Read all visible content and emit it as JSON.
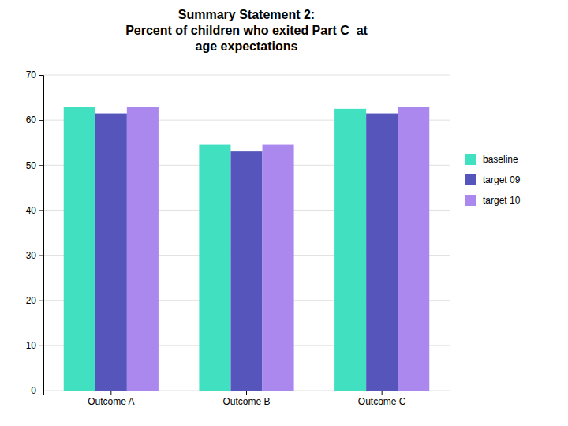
{
  "chart_data": {
    "type": "bar",
    "title": "Summary Statement 2:\nPercent of children who exited Part C  at\nage expectations",
    "categories": [
      "Outcome A",
      "Outcome B",
      "Outcome C"
    ],
    "series": [
      {
        "name": "baseline",
        "color": "#40E0C0",
        "values": [
          63,
          54.5,
          62.5
        ]
      },
      {
        "name": "target 09",
        "color": "#5555BB",
        "values": [
          61.5,
          53,
          61.5
        ]
      },
      {
        "name": "target 10",
        "color": "#AA88EE",
        "values": [
          63,
          54.5,
          63
        ]
      }
    ],
    "ylim": [
      0,
      70
    ],
    "yticks": [
      0,
      10,
      20,
      30,
      40,
      50,
      60,
      70
    ],
    "grid": true,
    "legend": "right"
  }
}
